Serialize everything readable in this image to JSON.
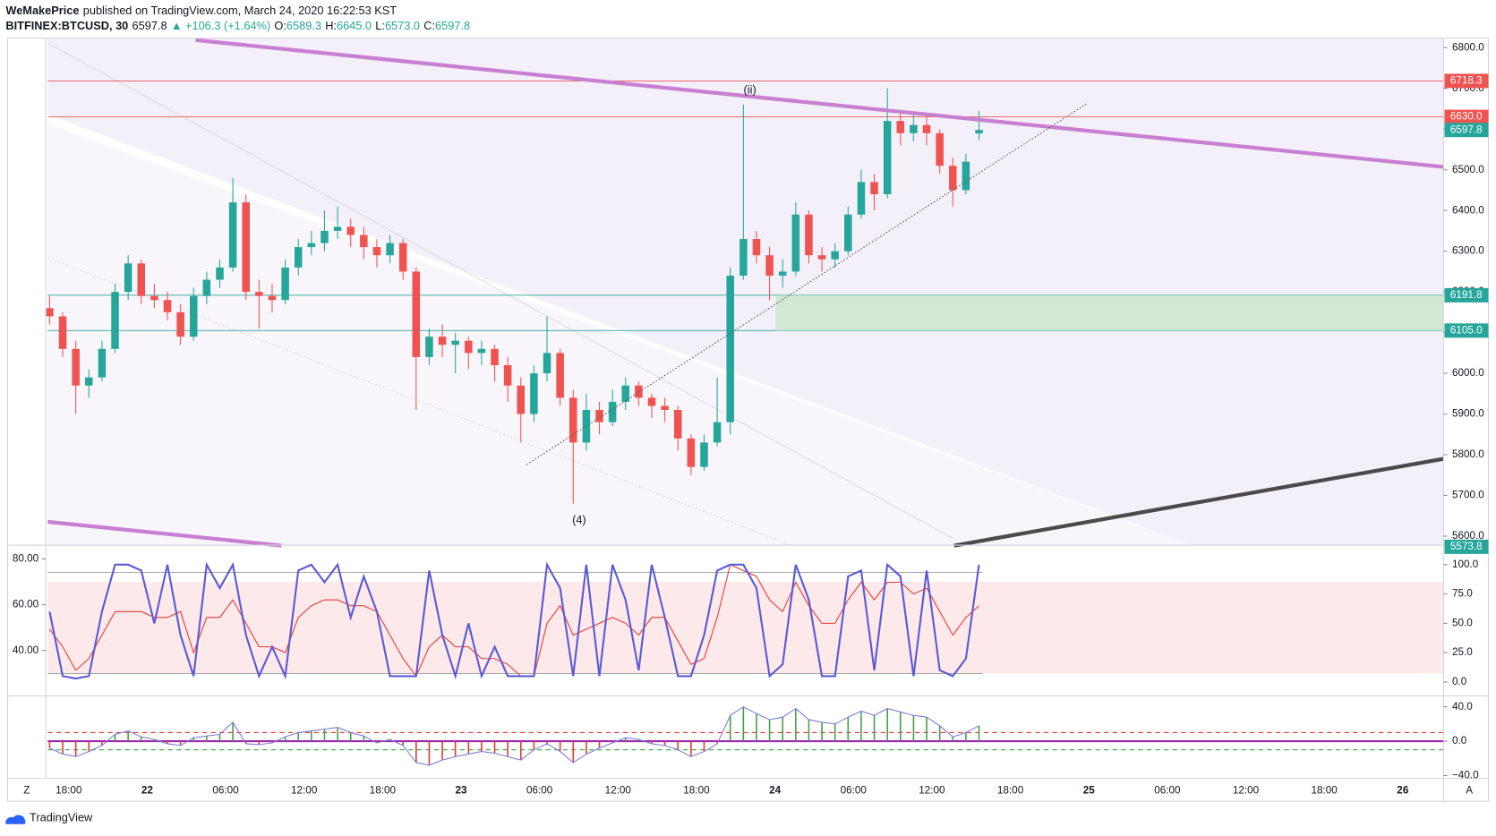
{
  "header": {
    "publisher": "WeMakePrice",
    "published": "published on TradingView.com, March 24, 2020 16:22:53 KST",
    "symbol": "BITFINEX:BTCUSD, 30",
    "last": "6597.8",
    "change": "▲ +106.3 (+1.64%)",
    "o_label": "O:",
    "o": "6589.3",
    "h_label": "H:",
    "h": "6645.0",
    "l_label": "L:",
    "l": "6573.0",
    "c_label": "C:",
    "c": "6597.8"
  },
  "chart_data": {
    "type": "candlestick",
    "up_color": "#26a69a",
    "down_color": "#ef5350",
    "candles": [
      [
        6160,
        6190,
        6120,
        6140
      ],
      [
        6140,
        6150,
        6040,
        6060
      ],
      [
        6060,
        6080,
        5900,
        5970
      ],
      [
        5970,
        6010,
        5940,
        5990
      ],
      [
        5990,
        6080,
        5980,
        6060
      ],
      [
        6060,
        6220,
        6050,
        6200
      ],
      [
        6200,
        6290,
        6180,
        6270
      ],
      [
        6270,
        6280,
        6170,
        6190
      ],
      [
        6190,
        6220,
        6160,
        6180
      ],
      [
        6180,
        6200,
        6130,
        6150
      ],
      [
        6150,
        6170,
        6070,
        6090
      ],
      [
        6090,
        6210,
        6080,
        6190
      ],
      [
        6190,
        6250,
        6170,
        6230
      ],
      [
        6230,
        6280,
        6210,
        6260
      ],
      [
        6260,
        6480,
        6250,
        6420
      ],
      [
        6420,
        6440,
        6180,
        6200
      ],
      [
        6200,
        6230,
        6110,
        6190
      ],
      [
        6190,
        6220,
        6150,
        6180
      ],
      [
        6180,
        6280,
        6170,
        6260
      ],
      [
        6260,
        6330,
        6240,
        6310
      ],
      [
        6310,
        6350,
        6290,
        6320
      ],
      [
        6320,
        6400,
        6300,
        6350
      ],
      [
        6350,
        6410,
        6330,
        6360
      ],
      [
        6360,
        6380,
        6310,
        6340
      ],
      [
        6340,
        6360,
        6280,
        6310
      ],
      [
        6310,
        6330,
        6260,
        6290
      ],
      [
        6290,
        6340,
        6270,
        6320
      ],
      [
        6320,
        6330,
        6230,
        6250
      ],
      [
        6250,
        6260,
        5910,
        6040
      ],
      [
        6040,
        6110,
        6020,
        6090
      ],
      [
        6090,
        6120,
        6040,
        6070
      ],
      [
        6070,
        6100,
        6000,
        6080
      ],
      [
        6080,
        6090,
        6010,
        6050
      ],
      [
        6050,
        6080,
        6020,
        6060
      ],
      [
        6060,
        6070,
        5980,
        6020
      ],
      [
        6020,
        6040,
        5930,
        5970
      ],
      [
        5970,
        5990,
        5830,
        5900
      ],
      [
        5900,
        6020,
        5880,
        6000
      ],
      [
        6000,
        6140,
        5980,
        6050
      ],
      [
        6050,
        6060,
        5920,
        5940
      ],
      [
        5940,
        5960,
        5680,
        5830
      ],
      [
        5830,
        5950,
        5810,
        5910
      ],
      [
        5910,
        5930,
        5850,
        5880
      ],
      [
        5880,
        5960,
        5870,
        5930
      ],
      [
        5930,
        5990,
        5910,
        5970
      ],
      [
        5970,
        5980,
        5920,
        5940
      ],
      [
        5940,
        5950,
        5890,
        5920
      ],
      [
        5920,
        5940,
        5880,
        5910
      ],
      [
        5910,
        5920,
        5810,
        5840
      ],
      [
        5840,
        5850,
        5750,
        5770
      ],
      [
        5770,
        5850,
        5760,
        5830
      ],
      [
        5830,
        5990,
        5820,
        5880
      ],
      [
        5880,
        6260,
        5850,
        6240
      ],
      [
        6240,
        6660,
        6230,
        6330
      ],
      [
        6330,
        6350,
        6270,
        6290
      ],
      [
        6290,
        6310,
        6180,
        6240
      ],
      [
        6240,
        6280,
        6210,
        6250
      ],
      [
        6250,
        6420,
        6240,
        6390
      ],
      [
        6390,
        6400,
        6270,
        6290
      ],
      [
        6290,
        6310,
        6250,
        6280
      ],
      [
        6280,
        6320,
        6260,
        6300
      ],
      [
        6300,
        6410,
        6290,
        6390
      ],
      [
        6390,
        6500,
        6380,
        6470
      ],
      [
        6470,
        6490,
        6400,
        6440
      ],
      [
        6440,
        6700,
        6430,
        6620
      ],
      [
        6620,
        6640,
        6560,
        6590
      ],
      [
        6590,
        6640,
        6570,
        6610
      ],
      [
        6610,
        6630,
        6560,
        6590
      ],
      [
        6590,
        6600,
        6490,
        6510
      ],
      [
        6510,
        6530,
        6410,
        6450
      ],
      [
        6450,
        6540,
        6440,
        6520
      ],
      [
        6589.3,
        6645,
        6573,
        6597.8
      ]
    ],
    "ylim": [
      5579,
      6823.4
    ],
    "yticks": [
      {
        "value": 6800,
        "label": "6800.0"
      },
      {
        "value": 6700,
        "label": "6700.0"
      },
      {
        "value": 6600,
        "label": "6600.0"
      },
      {
        "value": 6500,
        "label": "6500.0"
      },
      {
        "value": 6400,
        "label": "6400.0"
      },
      {
        "value": 6300,
        "label": "6300.0"
      },
      {
        "value": 6200,
        "label": "6200.0"
      },
      {
        "value": 6100,
        "label": "6100.0"
      },
      {
        "value": 6000,
        "label": "6000.0"
      },
      {
        "value": 5900,
        "label": "5900.0"
      },
      {
        "value": 5800,
        "label": "5800.0"
      },
      {
        "value": 5700,
        "label": "5700.0"
      },
      {
        "value": 5600,
        "label": "5600.0"
      }
    ],
    "price_labels": [
      {
        "value": 6718.3,
        "label": "6718.3",
        "color": "#ef5350",
        "kind": "resistance"
      },
      {
        "value": 6630.0,
        "label": "6630.0",
        "color": "#ef5350",
        "kind": "resistance"
      },
      {
        "value": 6597.8,
        "label": "6597.8",
        "color": "#26a69a",
        "kind": "last"
      },
      {
        "value": 6191.8,
        "label": "6191.8",
        "color": "#26a69a",
        "kind": "zone"
      },
      {
        "value": 6105.0,
        "label": "6105.0",
        "color": "#26a69a",
        "kind": "zone"
      },
      {
        "value": 5573.8,
        "label": "5573.8",
        "color": "#26a69a",
        "kind": "last"
      }
    ],
    "annotations": [
      {
        "text": "(ii)",
        "color": "#131722"
      },
      {
        "text": "(4)",
        "color": "#c87a1a"
      }
    ],
    "time_labels": [
      "18:00",
      "22",
      "06:00",
      "12:00",
      "18:00",
      "23",
      "06:00",
      "12:00",
      "18:00",
      "24",
      "06:00",
      "12:00",
      "18:00",
      "25",
      "06:00",
      "12:00",
      "18:00",
      "26"
    ],
    "stoch": {
      "ylim": [
        -10.6,
        115.4
      ],
      "yticks": [
        {
          "value": 100,
          "label": "100.0"
        },
        {
          "value": 75,
          "label": "75.0"
        },
        {
          "value": 50,
          "label": "50.0"
        },
        {
          "value": 25,
          "label": "25.0"
        },
        {
          "value": 0,
          "label": "0.0"
        }
      ],
      "left_ylim": [
        20.8,
        85.4
      ],
      "left_ticks": [
        {
          "value": 80,
          "label": "80.00"
        },
        {
          "value": 60,
          "label": "60.00"
        },
        {
          "value": 40,
          "label": "40.00"
        }
      ],
      "k": {
        "color": "#5b5bd6",
        "values": [
          60,
          5,
          3,
          5,
          60,
          100,
          100,
          95,
          50,
          100,
          40,
          5,
          100,
          80,
          100,
          40,
          5,
          30,
          5,
          95,
          100,
          85,
          100,
          55,
          90,
          60,
          5,
          5,
          5,
          95,
          40,
          5,
          50,
          5,
          30,
          5,
          5,
          5,
          100,
          80,
          5,
          100,
          5,
          100,
          70,
          10,
          100,
          55,
          5,
          5,
          40,
          95,
          100,
          100,
          80,
          5,
          15,
          100,
          70,
          5,
          5,
          90,
          95,
          10,
          100,
          90,
          5,
          95,
          10,
          5,
          20,
          100
        ]
      },
      "d": {
        "color": "#e53935",
        "values": [
          45,
          30,
          10,
          20,
          40,
          60,
          60,
          60,
          55,
          55,
          60,
          25,
          55,
          55,
          70,
          50,
          30,
          30,
          25,
          55,
          65,
          70,
          70,
          65,
          65,
          60,
          40,
          20,
          5,
          30,
          40,
          30,
          30,
          20,
          20,
          15,
          5,
          5,
          50,
          65,
          40,
          45,
          50,
          55,
          50,
          40,
          55,
          55,
          35,
          15,
          20,
          55,
          100,
          95,
          90,
          70,
          60,
          85,
          65,
          50,
          50,
          70,
          85,
          70,
          85,
          85,
          75,
          80,
          60,
          40,
          55,
          65
        ]
      }
    },
    "histogram": {
      "ylim": [
        -42.2,
        51.1
      ],
      "yticks": [
        {
          "value": 40,
          "label": "40.0"
        },
        {
          "value": 0,
          "label": "0.0"
        },
        {
          "value": -40,
          "label": "−40.0"
        }
      ],
      "levels": [
        {
          "value": 10,
          "color": "#e53935"
        },
        {
          "value": -10,
          "color": "#43a047"
        }
      ],
      "up_color": "#43a047",
      "down_color": "#e53935",
      "line_color": "#7b7bd9",
      "values": [
        -8,
        -15,
        -18,
        -12,
        -5,
        8,
        12,
        5,
        2,
        -3,
        -5,
        4,
        6,
        8,
        22,
        -3,
        -4,
        -2,
        5,
        10,
        12,
        14,
        16,
        10,
        6,
        -2,
        2,
        -5,
        -25,
        -28,
        -22,
        -18,
        -15,
        -12,
        -14,
        -18,
        -22,
        -10,
        -3,
        -12,
        -25,
        -15,
        -8,
        -2,
        4,
        2,
        -3,
        -5,
        -10,
        -18,
        -12,
        -3,
        30,
        40,
        32,
        25,
        28,
        38,
        25,
        22,
        20,
        28,
        35,
        30,
        38,
        34,
        30,
        28,
        18,
        5,
        10,
        18
      ]
    }
  },
  "footer": {
    "brand": "TradingView",
    "left_button": "Z",
    "right_button": "A"
  }
}
